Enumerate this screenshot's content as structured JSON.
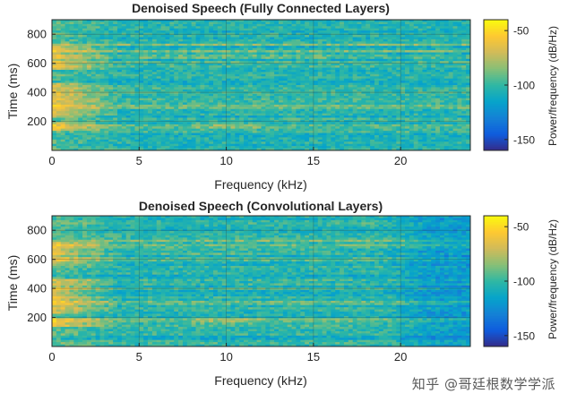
{
  "chart_data": [
    {
      "type": "heatmap",
      "title": "Denoised Speech (Fully Connected Layers)",
      "xlabel": "Frequency (kHz)",
      "ylabel": "Time (ms)",
      "xlim": [
        0,
        24
      ],
      "ylim": [
        0,
        900
      ],
      "xticks": [
        0,
        5,
        10,
        15,
        20
      ],
      "yticks": [
        200,
        400,
        600,
        800
      ],
      "colorbar": {
        "label": "Power/frequency (dB/Hz)",
        "ticks": [
          -50,
          -100,
          -150
        ],
        "range": [
          -160,
          -40
        ]
      },
      "grid": true,
      "strong_bands_ms": [
        165,
        300,
        360,
        420,
        600,
        690,
        730
      ],
      "low_freq_energy_khz": [
        0,
        4
      ],
      "ridge_ms": 680
    },
    {
      "type": "heatmap",
      "title": "Denoised Speech (Convolutional Layers)",
      "xlabel": "Frequency (kHz)",
      "ylabel": "Time (ms)",
      "xlim": [
        0,
        24
      ],
      "ylim": [
        0,
        900
      ],
      "xticks": [
        0,
        5,
        10,
        15,
        20
      ],
      "yticks": [
        200,
        400,
        600,
        800
      ],
      "colorbar": {
        "label": "Power/frequency (dB/Hz)",
        "ticks": [
          -50,
          -100,
          -150
        ],
        "range": [
          -160,
          -40
        ]
      },
      "grid": true,
      "strong_bands_ms": [
        180,
        300,
        400,
        600,
        690,
        730
      ],
      "low_freq_energy_khz": [
        0,
        4
      ],
      "ridge_ms": 680
    }
  ],
  "watermark": "知乎 @哥廷根数学学派",
  "colormap_stops": [
    "#352a87",
    "#0f5cdd",
    "#1481d6",
    "#06a4ca",
    "#2eb7a4",
    "#87bf77",
    "#d1bb59",
    "#fec832",
    "#f9fb0e"
  ]
}
